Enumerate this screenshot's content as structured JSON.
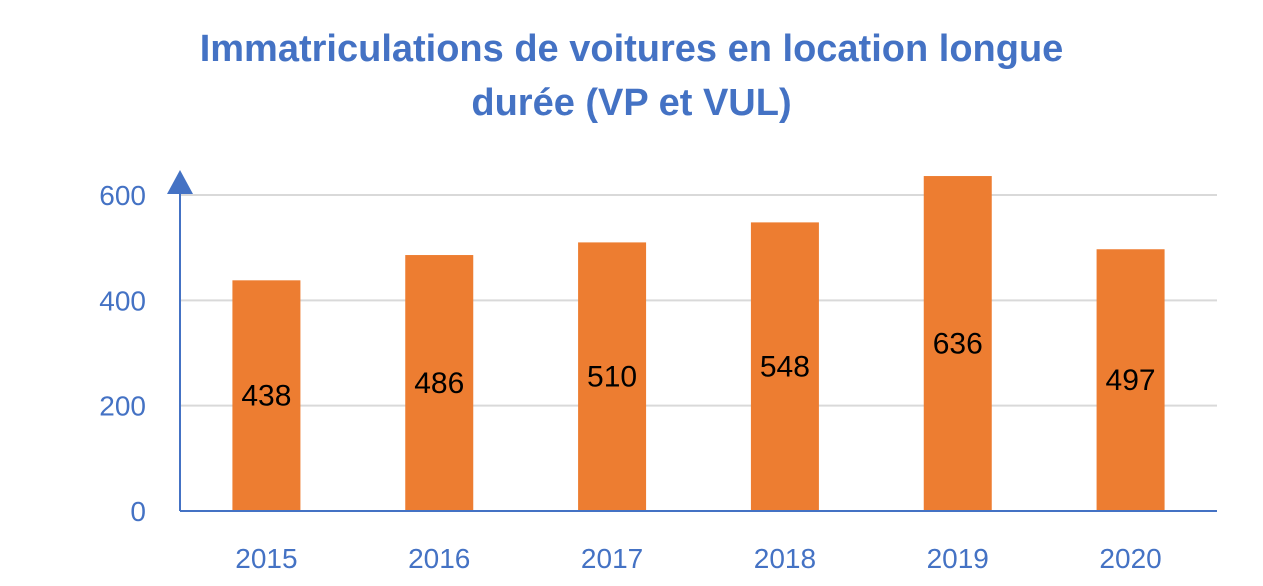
{
  "colors": {
    "title": "#4472C4",
    "bar": "#ED7D31",
    "axis": "#4472C4",
    "tick_label": "#4472C4",
    "grid": "#D9D9D9",
    "data_label": "#000000"
  },
  "chart_data": {
    "type": "bar",
    "title_lines": [
      "Immatriculations de voitures en location longue",
      "durée (VP et VUL)"
    ],
    "categories": [
      "2015",
      "2016",
      "2017",
      "2018",
      "2019",
      "2020"
    ],
    "values": [
      438,
      486,
      510,
      548,
      636,
      497
    ],
    "data_labels": [
      "438",
      "486",
      "510",
      "548",
      "636",
      "497"
    ],
    "yticks": [
      0,
      200,
      400,
      600
    ],
    "ytick_labels": [
      "0",
      "200",
      "400",
      "600"
    ],
    "ylim": [
      0,
      600
    ],
    "grid": true,
    "legend": "none",
    "xlabel": "",
    "ylabel": ""
  }
}
